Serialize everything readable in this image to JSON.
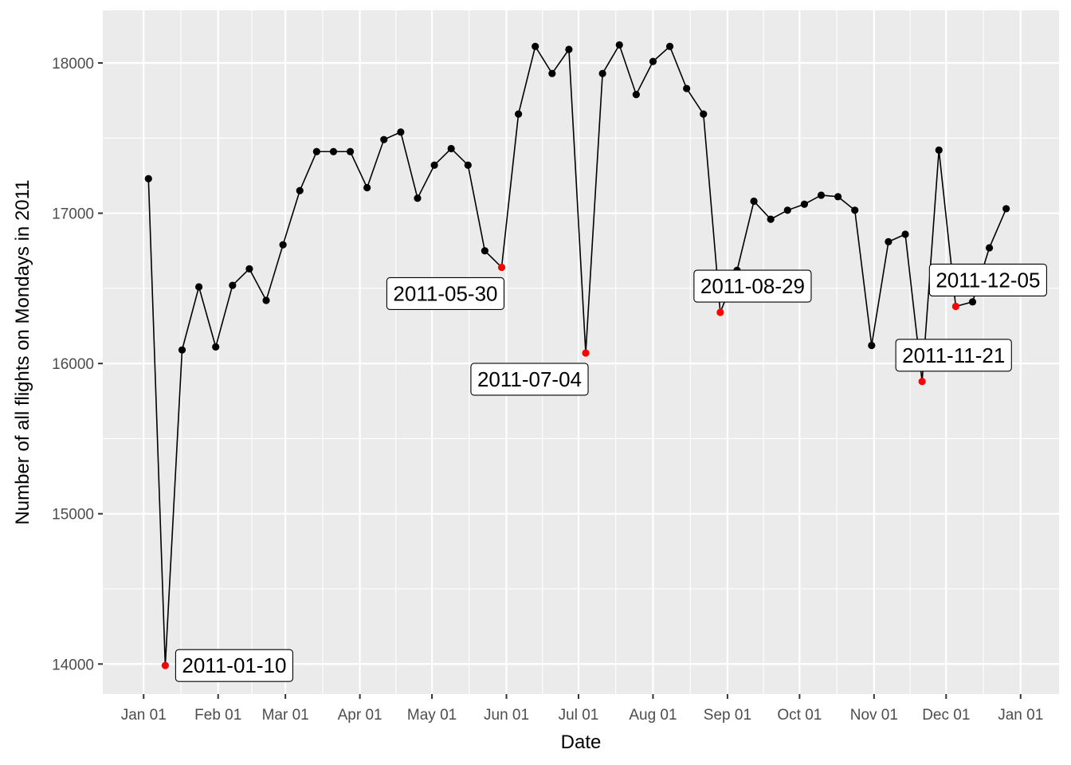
{
  "chart_data": {
    "type": "line",
    "xlabel": "Date",
    "ylabel": "Number of all flights on Mondays in 2011",
    "x_tick_labels": [
      "Jan 01",
      "Feb 01",
      "Mar 01",
      "Apr 01",
      "May 01",
      "Jun 01",
      "Jul 01",
      "Aug 01",
      "Sep 01",
      "Oct 01",
      "Nov 01",
      "Dec 01",
      "Jan 01"
    ],
    "x_tick_dates": [
      "2011-01-01",
      "2011-02-01",
      "2011-03-01",
      "2011-04-01",
      "2011-05-01",
      "2011-06-01",
      "2011-07-01",
      "2011-08-01",
      "2011-09-01",
      "2011-10-01",
      "2011-11-01",
      "2011-12-01",
      "2012-01-01"
    ],
    "y_ticks": [
      14000,
      15000,
      16000,
      17000,
      18000
    ],
    "y_tick_labels": [
      "14000",
      "15000",
      "16000",
      "17000",
      "18000"
    ],
    "xlim": [
      "2010-12-15",
      "2012-01-17"
    ],
    "ylim": [
      13800,
      18350
    ],
    "grid": true,
    "panel_background": "#ebebeb",
    "line_color": "#000000",
    "point_color": "#000000",
    "highlight_color": "#ff0000",
    "label_position": {
      "2011-01-10": "right",
      "2011-05-30": "below-left",
      "2011-07-04": "below-left",
      "2011-08-29": "above-right",
      "2011-11-21": "above-right",
      "2011-12-05": "above-right"
    },
    "series": [
      {
        "points": [
          {
            "date": "2011-01-03",
            "value": 17230
          },
          {
            "date": "2011-01-10",
            "value": 13990,
            "highlight": true,
            "label": "2011-01-10"
          },
          {
            "date": "2011-01-17",
            "value": 16090
          },
          {
            "date": "2011-01-24",
            "value": 16510
          },
          {
            "date": "2011-01-31",
            "value": 16110
          },
          {
            "date": "2011-02-07",
            "value": 16520
          },
          {
            "date": "2011-02-14",
            "value": 16630
          },
          {
            "date": "2011-02-21",
            "value": 16420
          },
          {
            "date": "2011-02-28",
            "value": 16790
          },
          {
            "date": "2011-03-07",
            "value": 17150
          },
          {
            "date": "2011-03-14",
            "value": 17410
          },
          {
            "date": "2011-03-21",
            "value": 17410
          },
          {
            "date": "2011-03-28",
            "value": 17410
          },
          {
            "date": "2011-04-04",
            "value": 17170
          },
          {
            "date": "2011-04-11",
            "value": 17490
          },
          {
            "date": "2011-04-18",
            "value": 17540
          },
          {
            "date": "2011-04-25",
            "value": 17100
          },
          {
            "date": "2011-05-02",
            "value": 17320
          },
          {
            "date": "2011-05-09",
            "value": 17430
          },
          {
            "date": "2011-05-16",
            "value": 17320
          },
          {
            "date": "2011-05-23",
            "value": 16750
          },
          {
            "date": "2011-05-30",
            "value": 16640,
            "highlight": true,
            "label": "2011-05-30"
          },
          {
            "date": "2011-06-06",
            "value": 17660
          },
          {
            "date": "2011-06-13",
            "value": 18110
          },
          {
            "date": "2011-06-20",
            "value": 17930
          },
          {
            "date": "2011-06-27",
            "value": 18090
          },
          {
            "date": "2011-07-04",
            "value": 16070,
            "highlight": true,
            "label": "2011-07-04"
          },
          {
            "date": "2011-07-11",
            "value": 17930
          },
          {
            "date": "2011-07-18",
            "value": 18120
          },
          {
            "date": "2011-07-25",
            "value": 17790
          },
          {
            "date": "2011-08-01",
            "value": 18010
          },
          {
            "date": "2011-08-08",
            "value": 18110
          },
          {
            "date": "2011-08-15",
            "value": 17830
          },
          {
            "date": "2011-08-22",
            "value": 17660
          },
          {
            "date": "2011-08-29",
            "value": 16340,
            "highlight": true,
            "label": "2011-08-29"
          },
          {
            "date": "2011-09-05",
            "value": 16620
          },
          {
            "date": "2011-09-12",
            "value": 17080
          },
          {
            "date": "2011-09-19",
            "value": 16960
          },
          {
            "date": "2011-09-26",
            "value": 17020
          },
          {
            "date": "2011-10-03",
            "value": 17060
          },
          {
            "date": "2011-10-10",
            "value": 17120
          },
          {
            "date": "2011-10-17",
            "value": 17110
          },
          {
            "date": "2011-10-24",
            "value": 17020
          },
          {
            "date": "2011-10-31",
            "value": 16120
          },
          {
            "date": "2011-11-07",
            "value": 16810
          },
          {
            "date": "2011-11-14",
            "value": 16860
          },
          {
            "date": "2011-11-21",
            "value": 15880,
            "highlight": true,
            "label": "2011-11-21"
          },
          {
            "date": "2011-11-28",
            "value": 17420
          },
          {
            "date": "2011-12-05",
            "value": 16380,
            "highlight": true,
            "label": "2011-12-05"
          },
          {
            "date": "2011-12-12",
            "value": 16410
          },
          {
            "date": "2011-12-19",
            "value": 16770
          },
          {
            "date": "2011-12-26",
            "value": 17030
          }
        ]
      }
    ]
  }
}
